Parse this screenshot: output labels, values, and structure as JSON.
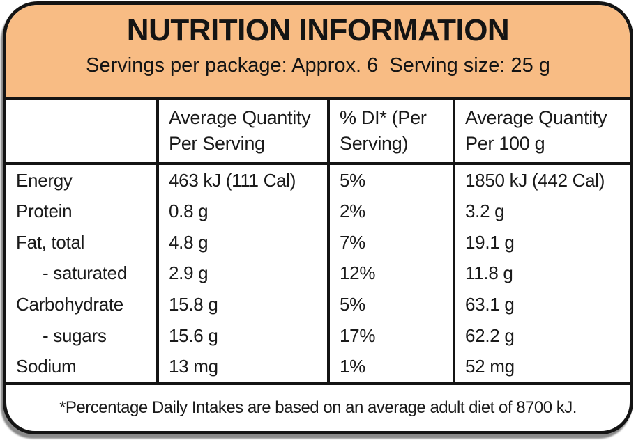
{
  "label": {
    "title": "NUTRITION INFORMATION",
    "serving_line": "Servings per package: Approx. 6  Serving size: 25 g",
    "footnote": "*Percentage Daily Intakes are based on an average adult diet of 8700 kJ.",
    "colors": {
      "header_bg": "#F8BC84",
      "border": "#141414",
      "table_bg": "#FFFFFF",
      "text": "#1A1A1A"
    }
  },
  "table": {
    "columns": {
      "nutrient": {
        "line1": "",
        "line2": ""
      },
      "serving": {
        "line1": "Average Quantity",
        "line2": "Per Serving"
      },
      "di": {
        "line1": "% DI* (Per",
        "line2": "Serving)"
      },
      "per100": {
        "line1": "Average Quantity",
        "line2": "Per 100 g"
      }
    },
    "rows": [
      {
        "nutrient": "Energy",
        "per_serving": "463 kJ (111 Cal)",
        "di": "5%",
        "per_100g": "1850 kJ (442 Cal)"
      },
      {
        "nutrient": "Protein",
        "per_serving": "0.8 g",
        "di": "2%",
        "per_100g": "3.2 g"
      },
      {
        "nutrient": "Fat, total",
        "per_serving": "4.8 g",
        "di": "7%",
        "per_100g": "19.1 g"
      },
      {
        "nutrient": "- saturated",
        "per_serving": "2.9 g",
        "di": "12%",
        "per_100g": "11.8 g"
      },
      {
        "nutrient": "Carbohydrate",
        "per_serving": "15.8 g",
        "di": "5%",
        "per_100g": "63.1 g"
      },
      {
        "nutrient": "- sugars",
        "per_serving": "15.6 g",
        "di": "17%",
        "per_100g": "62.2 g"
      },
      {
        "nutrient": "Sodium",
        "per_serving": "13 mg",
        "di": "1%",
        "per_100g": "52 mg"
      }
    ]
  }
}
